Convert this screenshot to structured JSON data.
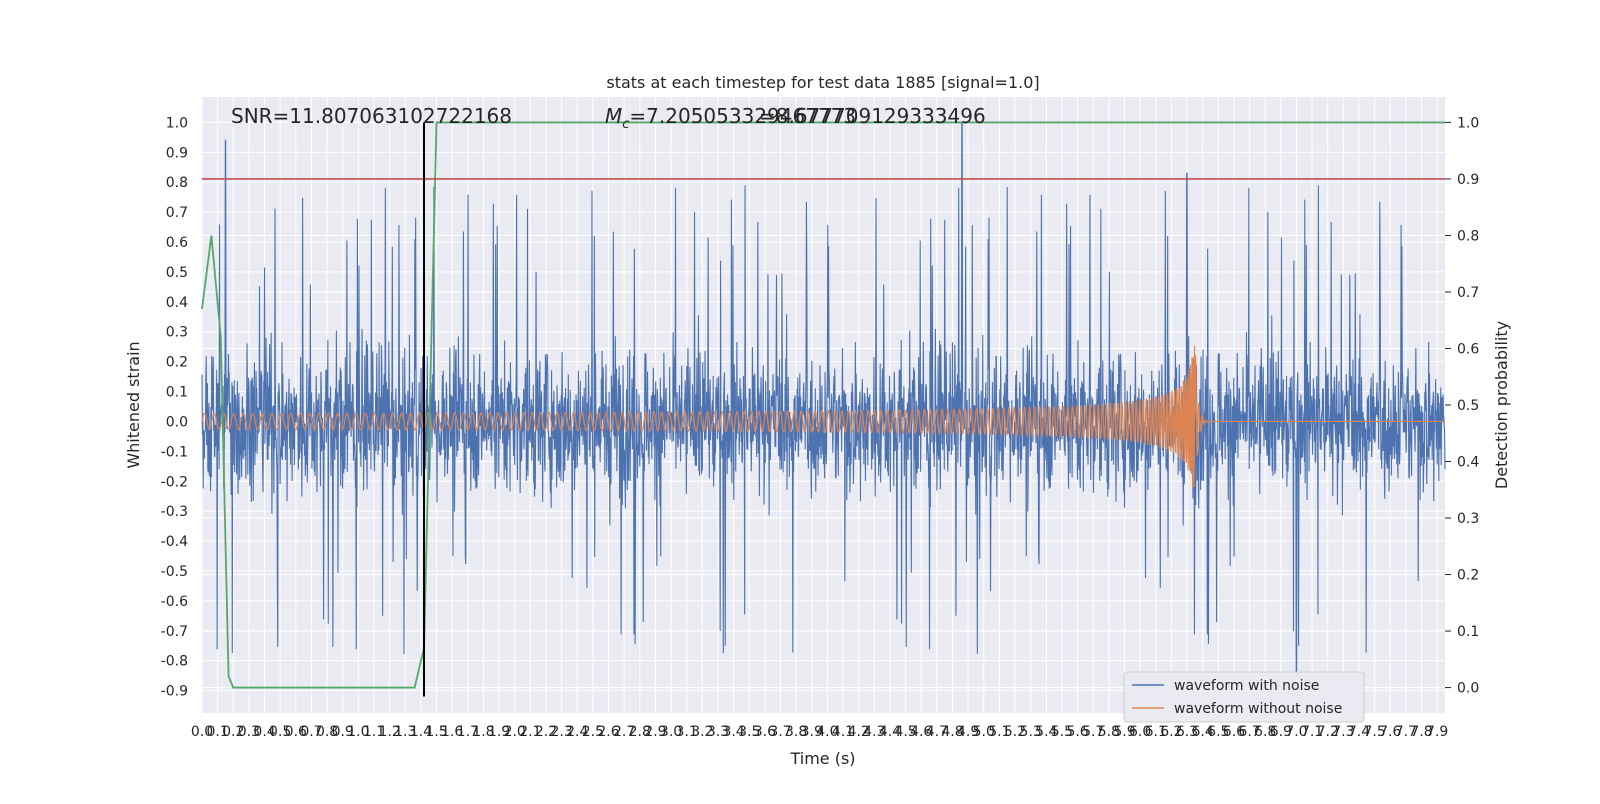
{
  "chart_data": {
    "type": "line",
    "title": "stats at each timestep for test data 1885 [signal=1.0]",
    "xlabel": "Time (s)",
    "ylabel": "Whitened strain",
    "y2label": "Detection probability",
    "xlim": [
      0.0,
      7.95
    ],
    "ylim": [
      -0.975,
      1.085
    ],
    "y2lim": [
      -0.045,
      1.045
    ],
    "grid": true,
    "legend_position": "lower right",
    "annotations": {
      "snr": "SNR=11.807063102722168",
      "mc_prefix": "M",
      "mc_sub": "c",
      "mc_value_a": "=7.205053329467773",
      "mc_value_b": "=8.677709129333496"
    },
    "x_ticks": [
      "0.0",
      "0.1",
      "0.2",
      "0.3",
      "0.4",
      "0.5",
      "0.6",
      "0.7",
      "0.8",
      "0.9",
      "1.0",
      "1.1",
      "1.2",
      "1.3",
      "1.4",
      "1.5",
      "1.6",
      "1.7",
      "1.8",
      "1.9",
      "2.0",
      "2.1",
      "2.2",
      "2.3",
      "2.4",
      "2.5",
      "2.6",
      "2.7",
      "2.8",
      "2.9",
      "3.0",
      "3.1",
      "3.2",
      "3.3",
      "3.4",
      "3.5",
      "3.6",
      "3.7",
      "3.8",
      "3.9",
      "4.0",
      "4.1",
      "4.2",
      "4.3",
      "4.4",
      "4.5",
      "4.6",
      "4.7",
      "4.8",
      "4.9",
      "5.0",
      "5.1",
      "5.2",
      "5.3",
      "5.4",
      "5.5",
      "5.6",
      "5.7",
      "5.8",
      "5.9",
      "6.0",
      "6.1",
      "6.2",
      "6.3",
      "6.4",
      "6.5",
      "6.6",
      "6.7",
      "6.8",
      "6.9",
      "7.0",
      "7.1",
      "7.2",
      "7.3",
      "7.4",
      "7.5",
      "7.6",
      "7.7",
      "7.8",
      "7.9"
    ],
    "y_ticks": [
      "1.0",
      "0.9",
      "0.8",
      "0.7",
      "0.6",
      "0.5",
      "0.4",
      "0.3",
      "0.2",
      "0.1",
      "0.0",
      "-0.1",
      "-0.2",
      "-0.3",
      "-0.4",
      "-0.5",
      "-0.6",
      "-0.7",
      "-0.8",
      "-0.9"
    ],
    "y2_ticks": [
      "1.0",
      "0.9",
      "0.8",
      "0.7",
      "0.6",
      "0.5",
      "0.4",
      "0.3",
      "0.2",
      "0.1",
      "0.0"
    ],
    "series": [
      {
        "name": "waveform with noise",
        "color": "#4c72b0",
        "noise_band": [
          -0.55,
          0.55
        ],
        "peak_spikes": [
          [
            0.15,
            0.94
          ],
          [
            4.86,
            1.0
          ],
          [
            6.3,
            0.83
          ],
          [
            7.0,
            -0.85
          ]
        ]
      },
      {
        "name": "waveform without noise",
        "color": "#dd8452",
        "merger_time": 6.35,
        "amplitude_start": 0.015,
        "amplitude_peak": 0.3
      },
      {
        "color": "#55a868",
        "axis": "right",
        "x": [
          0.0,
          0.06,
          0.12,
          0.17,
          0.2,
          0.25,
          1.36,
          1.42,
          1.5,
          7.95
        ],
        "values": [
          0.67,
          0.8,
          0.62,
          0.02,
          0.0,
          0.0,
          0.0,
          0.07,
          1.0,
          1.0
        ]
      },
      {
        "color": "#c44e52",
        "axis": "right",
        "type": "hline",
        "value": 0.9
      },
      {
        "color": "#000000",
        "type": "vline",
        "x": 1.42
      }
    ]
  }
}
